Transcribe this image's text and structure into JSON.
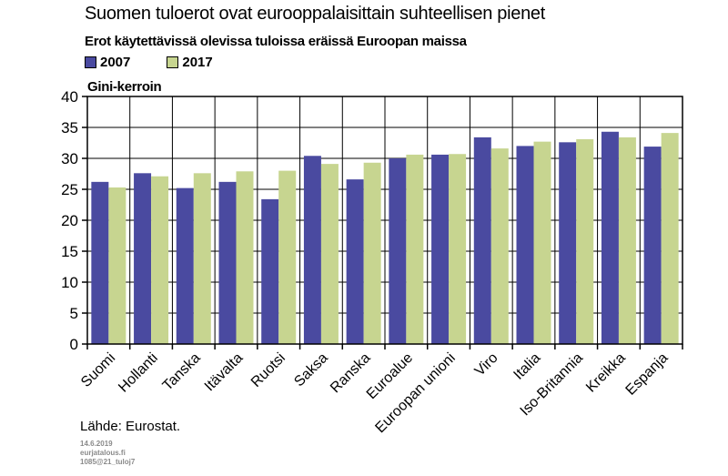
{
  "title": "Suomen tuloerot ovat eurooppalaisittain suhteellisen pienet",
  "subtitle": "Erot käytettävissä olevissa tuloissa eräissä Euroopan maissa",
  "source": "Lähde: Eurostat.",
  "meta": [
    "14.6.2019",
    "eurjatalous.fi",
    "1085@21_tuloj7"
  ],
  "colors": {
    "s2007": "#4a4aa0",
    "s2017": "#c7d590"
  },
  "chart_data": {
    "type": "bar",
    "ylabel": "Gini-kerroin",
    "ylim": [
      0,
      40
    ],
    "yticks": [
      0,
      5,
      10,
      15,
      20,
      25,
      30,
      35,
      40
    ],
    "categories": [
      "Suomi",
      "Hollanti",
      "Tanska",
      "Itävalta",
      "Ruotsi",
      "Saksa",
      "Ranska",
      "Euroalue",
      "Euroopan unioni",
      "Viro",
      "Italia",
      "Iso-Britannia",
      "Kreikka",
      "Espanja"
    ],
    "series": [
      {
        "name": "2007",
        "values": [
          26.2,
          27.6,
          25.2,
          26.2,
          23.4,
          30.4,
          26.6,
          30.0,
          30.6,
          33.4,
          32.0,
          32.6,
          34.3,
          31.9
        ]
      },
      {
        "name": "2017",
        "values": [
          25.3,
          27.1,
          27.6,
          27.9,
          28.0,
          29.1,
          29.3,
          30.6,
          30.7,
          31.6,
          32.7,
          33.1,
          33.4,
          34.1
        ]
      }
    ],
    "grid": true
  }
}
